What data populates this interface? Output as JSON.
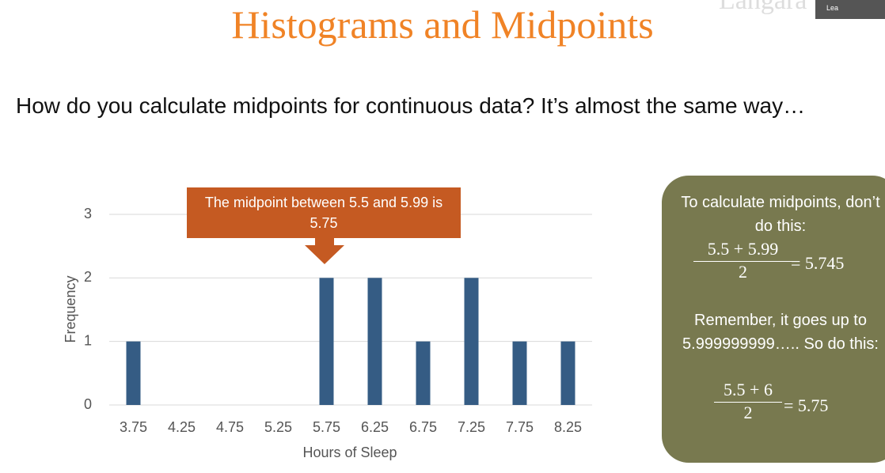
{
  "slide": {
    "title": "Histograms and Midpoints",
    "body": "How do you calculate midpoints for continuous data? It’s almost the same way…",
    "callout": "The midpoint between 5.5 and 5.99 is 5.75",
    "note": {
      "intro": "To calculate midpoints, don’t do this:",
      "wrong": {
        "numerator": "5.5 + 5.99",
        "denominator": "2",
        "result": "= 5.745"
      },
      "reminder": "Remember, it goes up to 5.999999999….. So do this:",
      "right": {
        "numerator": "5.5 + 6",
        "denominator": "2",
        "result": "= 5.75"
      }
    },
    "video": {
      "logo": "Langara",
      "name": "Lea"
    }
  },
  "chart_data": {
    "type": "bar",
    "categories": [
      "3.75",
      "4.25",
      "4.75",
      "5.25",
      "5.75",
      "6.25",
      "6.75",
      "7.25",
      "7.75",
      "8.25"
    ],
    "values": [
      1,
      0,
      0,
      0,
      2,
      2,
      1,
      2,
      1,
      1
    ],
    "color": "#355c84",
    "ylim": [
      0,
      3
    ],
    "yticks": [
      0,
      1,
      2,
      3
    ],
    "grid": true,
    "xlabel": "Hours of Sleep",
    "ylabel": "Frequency"
  }
}
